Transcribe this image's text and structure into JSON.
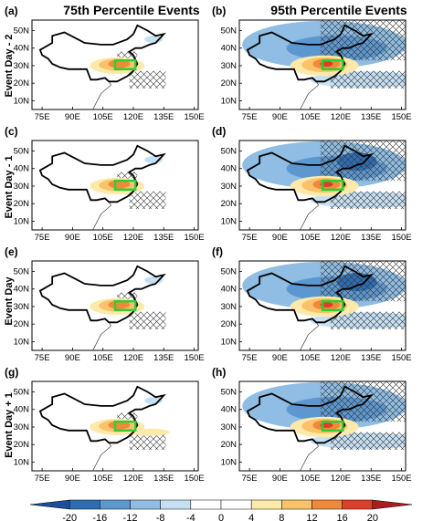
{
  "columns": [
    "75th Percentile Events",
    "95th Percentile Events"
  ],
  "rows": [
    "Event Day - 2",
    "Event Day - 1",
    "Event Day",
    "Event Day + 1"
  ],
  "panel_labels": [
    "(a)",
    "(b)",
    "(c)",
    "(d)",
    "(e)",
    "(f)",
    "(g)",
    "(h)"
  ],
  "lat_ticks": [
    "10N",
    "20N",
    "30N",
    "40N",
    "50N"
  ],
  "lon_ticks": [
    "75E",
    "90E",
    "105E",
    "120E",
    "135E",
    "150E"
  ],
  "colorbar": {
    "labels": [
      "-20",
      "-16",
      "-12",
      "-8",
      "-4",
      "0",
      "4",
      "8",
      "12",
      "16",
      "20"
    ],
    "colors": [
      "#1a4e99",
      "#2f6db3",
      "#5d97cf",
      "#8fbde3",
      "#c6e0f3",
      "#ffffff",
      "#ffffff",
      "#fde9a9",
      "#f9c26b",
      "#f08a3b",
      "#d8402a",
      "#a81e1c"
    ]
  },
  "colors": {
    "box": "#33cc33",
    "border": "#000000"
  }
}
